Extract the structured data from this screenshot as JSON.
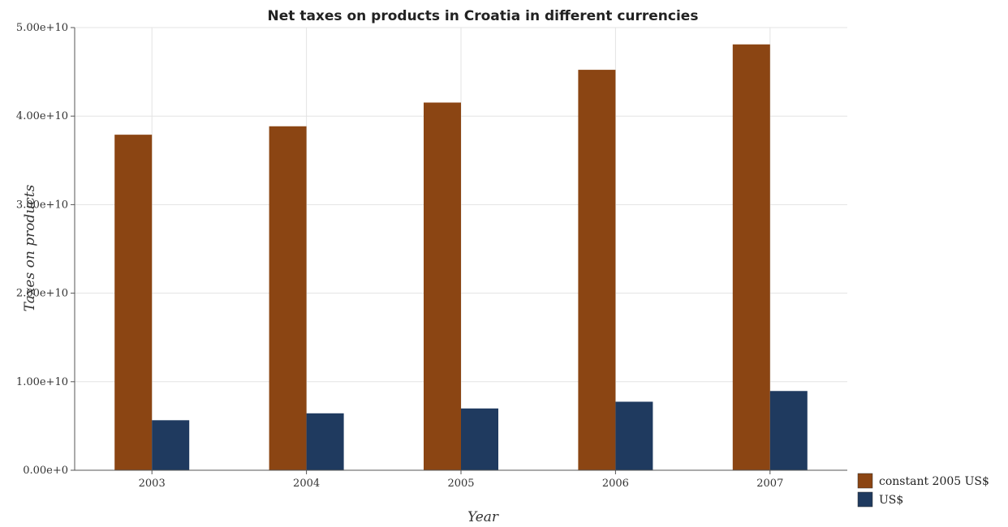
{
  "chart_data": {
    "type": "bar",
    "title": "Net taxes on products in Croatia in different currencies",
    "xlabel": "Year",
    "ylabel": "Taxes on products",
    "categories": [
      "2003",
      "2004",
      "2005",
      "2006",
      "2007"
    ],
    "series": [
      {
        "name": "constant 2005 US$",
        "color": "#8B4513",
        "values": [
          37900000000,
          38850000000,
          41530000000,
          45230000000,
          48100000000
        ]
      },
      {
        "name": "US$",
        "color": "#1F3A5F",
        "values": [
          5650000000,
          6430000000,
          6980000000,
          7740000000,
          8950000000
        ]
      }
    ],
    "ylim": [
      0,
      50000000000
    ],
    "yticks": [
      0,
      10000000000,
      20000000000,
      30000000000,
      40000000000,
      50000000000
    ],
    "ytick_labels": [
      "0.00e+0",
      "1.00e+10",
      "2.00e+10",
      "3.00e+10",
      "4.00e+10",
      "5.00e+10"
    ],
    "grid": true,
    "legend_position": "bottom-right"
  }
}
